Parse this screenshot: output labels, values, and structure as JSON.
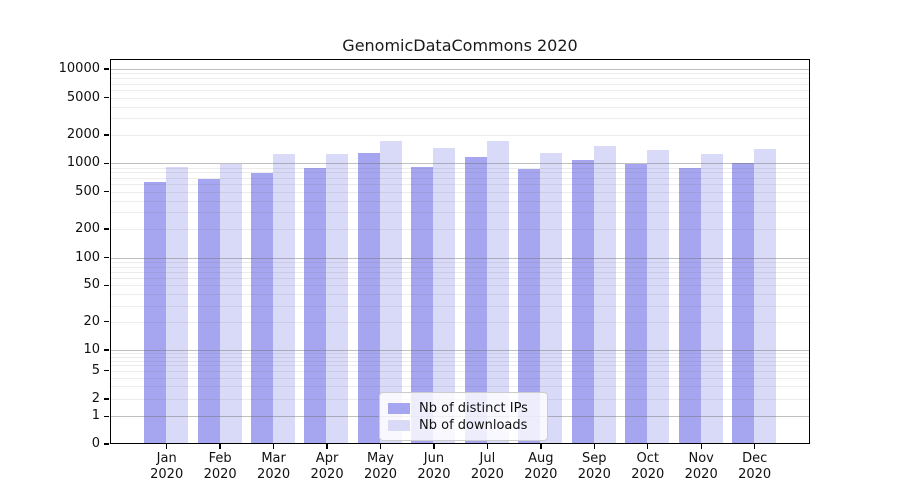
{
  "chart_data": {
    "type": "bar",
    "title": "GenomicDataCommons 2020",
    "categories": [
      "Jan",
      "Feb",
      "Mar",
      "Apr",
      "May",
      "Jun",
      "Jul",
      "Aug",
      "Sep",
      "Oct",
      "Nov",
      "Dec"
    ],
    "category_year": "2020",
    "series": [
      {
        "name": "Nb of distinct IPs",
        "color": "#a5a5f0",
        "values": [
          620,
          680,
          780,
          870,
          1260,
          910,
          1160,
          860,
          1060,
          960,
          870,
          1000
        ]
      },
      {
        "name": "Nb of downloads",
        "color": "#d9d9f8",
        "values": [
          910,
          980,
          1230,
          1250,
          1700,
          1420,
          1720,
          1280,
          1500,
          1360,
          1250,
          1390
        ]
      }
    ],
    "yscale": "symlog",
    "yticks": [
      10000,
      5000,
      2000,
      1000,
      500,
      200,
      100,
      50,
      20,
      10,
      5,
      2,
      1,
      0
    ],
    "ylim": [
      0,
      12800
    ],
    "xlabel": "",
    "ylabel": "",
    "grid": true,
    "legend_position": "lower center inside axes"
  }
}
